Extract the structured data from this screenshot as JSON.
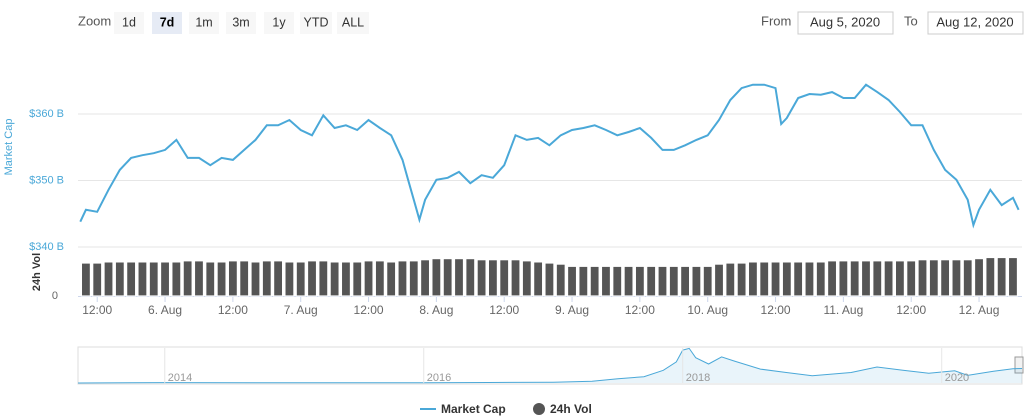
{
  "range_selector": {
    "label": "Zoom",
    "buttons": [
      "1d",
      "7d",
      "1m",
      "3m",
      "1y",
      "YTD",
      "ALL"
    ],
    "selected": 1
  },
  "date_range": {
    "from_label": "From",
    "from": "Aug 5, 2020",
    "to_label": "To",
    "to": "Aug 12, 2020"
  },
  "chart_data": {
    "type": "line",
    "ylabel": "Market Cap",
    "y2label": "24h Vol",
    "xlim": [
      8.6,
      175.6
    ],
    "xticks": [
      {
        "value": 12,
        "label": "12:00"
      },
      {
        "value": 24,
        "label": "6. Aug"
      },
      {
        "value": 36,
        "label": "12:00"
      },
      {
        "value": 48,
        "label": "7. Aug"
      },
      {
        "value": 60,
        "label": "12:00"
      },
      {
        "value": 72,
        "label": "8. Aug"
      },
      {
        "value": 84,
        "label": "12:00"
      },
      {
        "value": 96,
        "label": "9. Aug"
      },
      {
        "value": 108,
        "label": "12:00"
      },
      {
        "value": 120,
        "label": "10. Aug"
      },
      {
        "value": 132,
        "label": "12:00"
      },
      {
        "value": 144,
        "label": "11. Aug"
      },
      {
        "value": 156,
        "label": "12:00"
      },
      {
        "value": 168,
        "label": "12. Aug"
      }
    ],
    "ylim": [
      340,
      370
    ],
    "yticks": [
      {
        "value": 340,
        "label": "$340 B"
      },
      {
        "value": 350,
        "label": "$350 B"
      },
      {
        "value": 360,
        "label": "$360 B"
      }
    ],
    "y2lim": [
      0,
      40
    ],
    "y2ticks": [
      0
    ],
    "grid": true,
    "series": [
      {
        "name": "Market Cap",
        "color": "#4aa8d8",
        "x": [
          9,
          10,
          12,
          14,
          16,
          18,
          20,
          22,
          24,
          26,
          28,
          30,
          32,
          34,
          36,
          38,
          40,
          42,
          44,
          46,
          48,
          50,
          52,
          54,
          56,
          58,
          60,
          62,
          64,
          66,
          67,
          68,
          69,
          70,
          72,
          74,
          76,
          78,
          80,
          82,
          84,
          86,
          88,
          90,
          92,
          94,
          96,
          98,
          100,
          102,
          104,
          106,
          108,
          110,
          112,
          114,
          116,
          118,
          120,
          122,
          124,
          126,
          128,
          130,
          132,
          133,
          134,
          136,
          138,
          140,
          142,
          144,
          146,
          148,
          150,
          152,
          154,
          156,
          158,
          160,
          162,
          164,
          166,
          167,
          168,
          170,
          172,
          174,
          175
        ],
        "values": [
          343.8,
          345.6,
          345.3,
          348.6,
          351.6,
          353.4,
          353.8,
          354.1,
          354.6,
          356.1,
          353.4,
          353.4,
          352.3,
          353.4,
          353.1,
          354.6,
          356.1,
          358.3,
          358.3,
          359.1,
          357.6,
          356.8,
          359.8,
          357.9,
          358.3,
          357.6,
          359.1,
          357.9,
          356.8,
          353.1,
          350.1,
          347.1,
          344.1,
          347.1,
          350.1,
          350.4,
          351.3,
          349.6,
          350.8,
          350.4,
          352.3,
          356.8,
          356.1,
          356.4,
          355.3,
          356.8,
          357.6,
          357.9,
          358.3,
          357.6,
          356.8,
          357.3,
          357.9,
          356.4,
          354.6,
          354.6,
          355.3,
          356.1,
          356.8,
          359.1,
          362.1,
          363.9,
          364.4,
          364.4,
          363.9,
          358.5,
          359.4,
          362.4,
          363.0,
          362.9,
          363.3,
          362.4,
          362.4,
          364.4,
          363.3,
          362.1,
          360.3,
          358.3,
          358.3,
          354.6,
          351.6,
          350.1,
          347.1,
          343.3,
          345.6,
          348.6,
          346.3,
          347.4,
          345.6
        ]
      },
      {
        "name": "24h Vol",
        "color": "#555555",
        "axis": "y2",
        "x": [
          10,
          12,
          14,
          16,
          18,
          20,
          22,
          24,
          26,
          28,
          30,
          32,
          34,
          36,
          38,
          40,
          42,
          44,
          46,
          48,
          50,
          52,
          54,
          56,
          58,
          60,
          62,
          64,
          66,
          68,
          70,
          72,
          74,
          76,
          78,
          80,
          82,
          84,
          86,
          88,
          90,
          92,
          94,
          96,
          98,
          100,
          102,
          104,
          106,
          108,
          110,
          112,
          114,
          116,
          118,
          120,
          122,
          124,
          126,
          128,
          130,
          132,
          134,
          136,
          138,
          140,
          142,
          144,
          146,
          148,
          150,
          152,
          154,
          156,
          158,
          160,
          162,
          164,
          166,
          168,
          170,
          172,
          174
        ],
        "values": [
          30,
          30,
          31,
          31,
          31,
          31,
          31,
          31,
          31,
          32,
          32,
          31,
          31,
          32,
          32,
          31,
          32,
          32,
          31,
          31,
          32,
          32,
          31,
          31,
          31,
          32,
          32,
          31,
          32,
          32,
          33,
          34,
          34,
          34,
          34,
          33,
          33,
          33,
          33,
          32,
          31,
          30,
          29,
          27,
          27,
          27,
          27,
          27,
          27,
          27,
          27,
          27,
          27,
          27,
          27,
          27,
          29,
          30,
          30,
          31,
          31,
          31,
          31,
          31,
          31,
          31,
          32,
          32,
          32,
          32,
          32,
          32,
          32,
          32,
          33,
          33,
          33,
          33,
          33,
          34,
          35,
          35,
          35
        ]
      }
    ],
    "navigator": {
      "color": "#4aa8d8",
      "xlim": [
        2013.33,
        2020.62
      ],
      "xticks": [
        2014,
        2016,
        2018,
        2020
      ],
      "ylim": [
        0,
        830
      ],
      "x": [
        2013.33,
        2014,
        2015,
        2016,
        2016.5,
        2017,
        2017.3,
        2017.5,
        2017.7,
        2017.85,
        2017.95,
        2018,
        2018.05,
        2018.1,
        2018.2,
        2018.3,
        2018.4,
        2018.6,
        2018.8,
        2019,
        2019.3,
        2019.5,
        2019.7,
        2019.9,
        2020.1,
        2020.2,
        2020.4,
        2020.55,
        2020.62
      ],
      "values": [
        1,
        10,
        4,
        7,
        12,
        18,
        40,
        100,
        150,
        300,
        500,
        780,
        820,
        600,
        450,
        620,
        520,
        330,
        250,
        170,
        250,
        380,
        300,
        230,
        290,
        180,
        280,
        340,
        345
      ]
    }
  }
}
